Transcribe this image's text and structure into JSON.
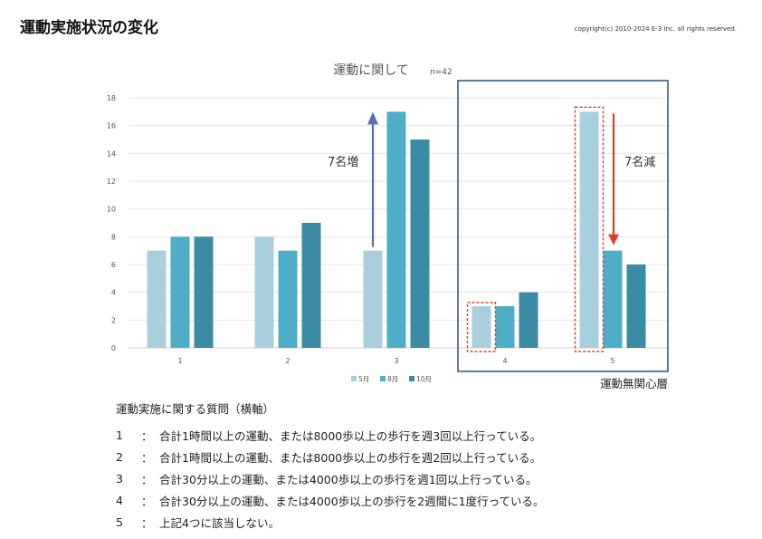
{
  "page": {
    "title": "運動実施状況の変化",
    "copyright": "copyright(c) 2010-2024 E-3 Inc. all rights reserved."
  },
  "chart_data": {
    "type": "bar",
    "title": "運動に関して",
    "subtitle": "n=42",
    "categories": [
      "1",
      "2",
      "3",
      "4",
      "5"
    ],
    "series": [
      {
        "name": "5月",
        "values": [
          7,
          8,
          7,
          3,
          17
        ],
        "color": "#a9cfdc"
      },
      {
        "name": "8月",
        "values": [
          8,
          7,
          17,
          3,
          7
        ],
        "color": "#4eadc7"
      },
      {
        "name": "10月",
        "values": [
          8,
          9,
          15,
          4,
          6
        ],
        "color": "#3a8ba3"
      }
    ],
    "ylim": [
      0,
      18
    ],
    "yticks": [
      0,
      2,
      4,
      6,
      8,
      10,
      12,
      14,
      16,
      18
    ],
    "grid": true,
    "legend": "bottom",
    "annotations": {
      "increase_label": "7名増",
      "decrease_label": "7名減",
      "group_label": "運動無関心層",
      "increase_color": "#5a6fb0",
      "decrease_color": "#e03c2a",
      "box_color": "#3a5a8a",
      "dashed_color": "#e03c2a"
    }
  },
  "questions": {
    "heading": "運動実施に関する質問（横軸）",
    "items": [
      {
        "num": "1",
        "colon": "：",
        "text": "合計1時間以上の運動、または8000歩以上の歩行を週3回以上行っている。"
      },
      {
        "num": "2",
        "colon": "：",
        "text": "合計1時間以上の運動、または8000歩以上の歩行を週2回以上行っている。"
      },
      {
        "num": "3",
        "colon": "：",
        "text": "合計30分以上の運動、または4000歩以上の歩行を週1回以上行っている。"
      },
      {
        "num": "4",
        "colon": "：",
        "text": "合計30分以上の運動、または4000歩以上の歩行を2週間に1度行っている。"
      },
      {
        "num": "5",
        "colon": "：",
        "text": "上記4つに該当しない。"
      }
    ]
  }
}
